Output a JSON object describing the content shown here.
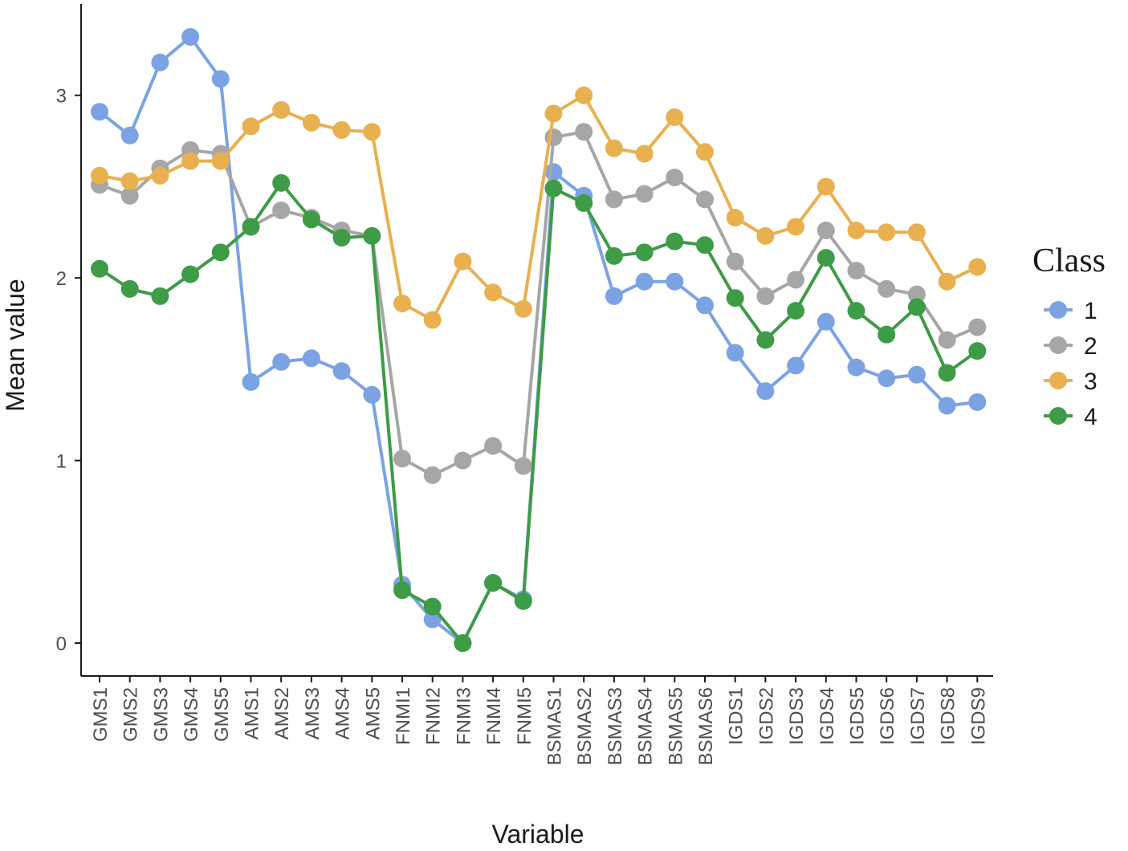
{
  "chart_data": {
    "type": "line",
    "title": "",
    "xlabel": "Variable",
    "ylabel": "Mean value",
    "ylim": [
      -0.18,
      3.5
    ],
    "yticks": [
      0,
      1,
      2,
      3
    ],
    "grid": false,
    "legend_title": "Class",
    "legend_position": "right",
    "categories": [
      "GMS1",
      "GMS2",
      "GMS3",
      "GMS4",
      "GMS5",
      "AMS1",
      "AMS2",
      "AMS3",
      "AMS4",
      "AMS5",
      "FNMI1",
      "FNMI2",
      "FNMI3",
      "FNMI4",
      "FNMI5",
      "BSMAS1",
      "BSMAS2",
      "BSMAS3",
      "BSMAS4",
      "BSMAS5",
      "BSMAS6",
      "IGDS1",
      "IGDS2",
      "IGDS3",
      "IGDS4",
      "IGDS5",
      "IGDS6",
      "IGDS7",
      "IGDS8",
      "IGDS9"
    ],
    "series": [
      {
        "name": "1",
        "color": "#7BA3E3",
        "values": [
          2.91,
          2.78,
          3.18,
          3.32,
          3.09,
          1.43,
          1.54,
          1.56,
          1.49,
          1.36,
          0.32,
          0.13,
          0.0,
          0.33,
          0.24,
          2.58,
          2.45,
          1.9,
          1.98,
          1.98,
          1.85,
          1.59,
          1.38,
          1.52,
          1.76,
          1.51,
          1.45,
          1.47,
          1.3,
          1.32
        ]
      },
      {
        "name": "2",
        "color": "#A6A6A6",
        "values": [
          2.51,
          2.45,
          2.6,
          2.7,
          2.68,
          2.28,
          2.37,
          2.33,
          2.26,
          2.23,
          1.01,
          0.92,
          1.0,
          1.08,
          0.97,
          2.77,
          2.8,
          2.43,
          2.46,
          2.55,
          2.43,
          2.09,
          1.9,
          1.99,
          2.26,
          2.04,
          1.94,
          1.91,
          1.66,
          1.73
        ]
      },
      {
        "name": "3",
        "color": "#E8B04E",
        "values": [
          2.56,
          2.53,
          2.56,
          2.64,
          2.64,
          2.83,
          2.92,
          2.85,
          2.81,
          2.8,
          1.86,
          1.77,
          2.09,
          1.92,
          1.83,
          2.9,
          3.0,
          2.71,
          2.68,
          2.88,
          2.69,
          2.33,
          2.23,
          2.28,
          2.5,
          2.26,
          2.25,
          2.25,
          1.98,
          2.06
        ]
      },
      {
        "name": "4",
        "color": "#3E9B46",
        "values": [
          2.05,
          1.94,
          1.9,
          2.02,
          2.14,
          2.28,
          2.52,
          2.32,
          2.22,
          2.23,
          0.29,
          0.2,
          0.0,
          0.33,
          0.23,
          2.49,
          2.41,
          2.12,
          2.14,
          2.2,
          2.18,
          1.89,
          1.66,
          1.82,
          2.11,
          1.82,
          1.69,
          1.84,
          1.48,
          1.6
        ]
      }
    ]
  }
}
